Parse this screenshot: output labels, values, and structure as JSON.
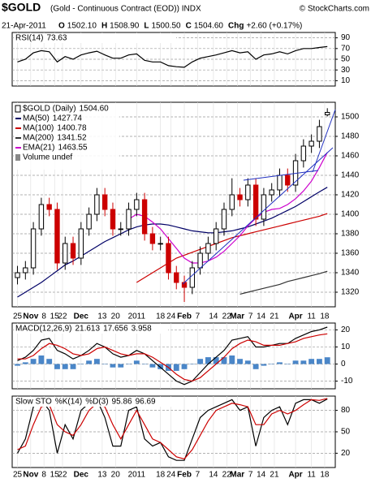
{
  "chart_data": {
    "type": "financial",
    "title": "$GOLD",
    "subtitle": "(Gold - Continuous Contract (EOD)) INDX",
    "source": "© StockCharts.com",
    "date": "21-Apr-2011",
    "quote": [
      {
        "label": "O",
        "value": "1502.10"
      },
      {
        "label": "H",
        "value": "1508.90"
      },
      {
        "label": "L",
        "value": "1500.50"
      },
      {
        "label": "C",
        "value": "1504.60"
      },
      {
        "label": "Chg",
        "value": "+2.60 (+0.17%)"
      }
    ],
    "x": [
      0,
      3,
      6,
      9,
      12,
      15,
      18,
      21,
      24,
      27,
      30,
      33,
      36,
      39,
      42,
      45,
      48,
      51,
      54,
      57,
      60,
      63,
      66,
      69,
      72,
      75,
      78,
      81,
      84,
      87,
      90,
      93,
      96,
      99,
      102,
      105,
      108,
      111,
      114,
      117
    ],
    "xlim": [
      -2,
      120
    ],
    "xticks": [
      {
        "value": 0,
        "label": "25"
      },
      {
        "value": 5,
        "label": "Nov"
      },
      {
        "value": 10,
        "label": "8"
      },
      {
        "value": 14,
        "label": "15"
      },
      {
        "value": 17,
        "label": "22"
      },
      {
        "value": 24,
        "label": "Dec"
      },
      {
        "value": 32,
        "label": "13"
      },
      {
        "value": 37,
        "label": "20"
      },
      {
        "value": 45,
        "label": "2011"
      },
      {
        "value": 54,
        "label": "18"
      },
      {
        "value": 58,
        "label": "24"
      },
      {
        "value": 63,
        "label": "Feb"
      },
      {
        "value": 68,
        "label": "7"
      },
      {
        "value": 74,
        "label": "14"
      },
      {
        "value": 79,
        "label": "22"
      },
      {
        "value": 83,
        "label": "Mar"
      },
      {
        "value": 88,
        "label": "7"
      },
      {
        "value": 92,
        "label": "14"
      },
      {
        "value": 97,
        "label": "21"
      },
      {
        "value": 105,
        "label": "Apr"
      },
      {
        "value": 111,
        "label": "11"
      },
      {
        "value": 116,
        "label": "18"
      }
    ],
    "panels": [
      {
        "type": "line",
        "ylim": [
          0,
          100
        ],
        "yticks": [
          10,
          30,
          50,
          70,
          90
        ],
        "grid": true,
        "series": [
          {
            "name": "RSI(14)",
            "color": "#000000",
            "last_label": "73.63",
            "values": [
              45,
              50,
              62,
              66,
              64,
              45,
              55,
              50,
              58,
              62,
              65,
              58,
              52,
              52,
              58,
              60,
              48,
              45,
              45,
              38,
              36,
              35,
              45,
              52,
              55,
              58,
              62,
              66,
              62,
              64,
              50,
              58,
              60,
              64,
              60,
              66,
              70,
              70,
              72,
              73.63
            ]
          }
        ]
      },
      {
        "type": "candlestick",
        "name": "$GOLD (Daily)",
        "last_label": "1504.60",
        "ylim": [
          1305,
          1515
        ],
        "yticks": [
          1320,
          1340,
          1360,
          1380,
          1400,
          1420,
          1440,
          1460,
          1480,
          1500
        ],
        "grid": true,
        "up_color": "#000000",
        "down_color": "#cc0000",
        "volume_label": "Volume undef",
        "open": [
          1335,
          1340,
          1345,
          1385,
          1410,
          1405,
          1350,
          1370,
          1355,
          1385,
          1400,
          1420,
          1405,
          1385,
          1385,
          1405,
          1415,
          1380,
          1370,
          1370,
          1340,
          1330,
          1325,
          1345,
          1360,
          1370,
          1385,
          1405,
          1420,
          1415,
          1430,
          1395,
          1420,
          1425,
          1440,
          1430,
          1455,
          1470,
          1475,
          1502.1
        ],
        "high": [
          1347,
          1352,
          1392,
          1417,
          1417,
          1412,
          1377,
          1377,
          1392,
          1407,
          1427,
          1427,
          1412,
          1392,
          1412,
          1422,
          1422,
          1387,
          1377,
          1377,
          1347,
          1337,
          1352,
          1367,
          1377,
          1392,
          1412,
          1437,
          1427,
          1437,
          1437,
          1427,
          1432,
          1447,
          1447,
          1462,
          1477,
          1482,
          1497,
          1508.9
        ],
        "low": [
          1328,
          1333,
          1338,
          1378,
          1398,
          1343,
          1343,
          1348,
          1348,
          1378,
          1393,
          1398,
          1378,
          1378,
          1378,
          1398,
          1373,
          1363,
          1363,
          1333,
          1323,
          1310,
          1318,
          1338,
          1353,
          1363,
          1378,
          1398,
          1408,
          1408,
          1388,
          1388,
          1413,
          1418,
          1423,
          1423,
          1448,
          1463,
          1468,
          1500.5
        ],
        "close": [
          1340,
          1345,
          1385,
          1410,
          1405,
          1350,
          1370,
          1355,
          1385,
          1400,
          1420,
          1405,
          1385,
          1385,
          1405,
          1415,
          1380,
          1370,
          1370,
          1340,
          1330,
          1325,
          1345,
          1360,
          1370,
          1385,
          1405,
          1420,
          1415,
          1430,
          1395,
          1420,
          1425,
          1440,
          1430,
          1455,
          1470,
          1475,
          1490,
          1504.6
        ],
        "series": [
          {
            "name": "MA(50)",
            "color": "#000066",
            "last_label": "1427.74",
            "values": [
              1315,
              1320,
              1325,
              1330,
              1336,
              1342,
              1348,
              1352,
              1357,
              1362,
              1367,
              1372,
              1376,
              1380,
              1384,
              1387,
              1389,
              1390,
              1390,
              1389,
              1387,
              1385,
              1383,
              1382,
              1381,
              1381,
              1382,
              1383,
              1385,
              1387,
              1390,
              1393,
              1396,
              1400,
              1404,
              1408,
              1413,
              1418,
              1423,
              1427.74
            ]
          },
          {
            "name": "MA(100)",
            "color": "#cc0000",
            "last_label": "1400.78",
            "values": [
              null,
              null,
              null,
              null,
              null,
              null,
              null,
              null,
              null,
              null,
              null,
              null,
              null,
              null,
              null,
              1330,
              1335,
              1340,
              1345,
              1350,
              1355,
              1358,
              1361,
              1364,
              1367,
              1370,
              1373,
              1376,
              1378,
              1380,
              1382,
              1384,
              1386,
              1388,
              1390,
              1392,
              1394,
              1396,
              1398,
              1400.78
            ]
          },
          {
            "name": "MA(200)",
            "color": "#333333",
            "last_label": "1341.52",
            "values": [
              null,
              null,
              null,
              null,
              null,
              null,
              null,
              null,
              null,
              null,
              null,
              null,
              null,
              null,
              null,
              null,
              null,
              null,
              null,
              null,
              null,
              null,
              null,
              null,
              null,
              null,
              null,
              null,
              1318,
              1320,
              1322,
              1324,
              1326,
              1328,
              1331,
              1333,
              1335,
              1337,
              1339,
              1341.52
            ]
          },
          {
            "name": "EMA(21)",
            "color": "#cc00cc",
            "last_label": "1463.55",
            "values": [
              null,
              null,
              null,
              null,
              null,
              null,
              null,
              null,
              null,
              null,
              null,
              null,
              null,
              null,
              1395,
              1400,
              1398,
              1392,
              1385,
              1375,
              1365,
              1355,
              1350,
              1350,
              1352,
              1356,
              1362,
              1370,
              1378,
              1388,
              1396,
              1402,
              1405,
              1406,
              1410,
              1416,
              1424,
              1434,
              1448,
              1463.55
            ]
          }
        ]
      },
      {
        "type": "macd",
        "ylim": [
          -14.5,
          24
        ],
        "yticks": [
          -10,
          0,
          10,
          20
        ],
        "grid": true,
        "title": "MACD(12,26,9)",
        "series": [
          {
            "name": "MACD",
            "color": "#000000",
            "last_label": "21.613",
            "values": [
              2,
              4,
              8,
              14,
              15,
              8,
              6,
              3,
              5,
              8,
              12,
              10,
              6,
              4,
              5,
              8,
              6,
              2,
              -2,
              -6,
              -10,
              -12,
              -10,
              -5,
              0,
              4,
              8,
              14,
              15,
              16,
              10,
              10,
              11,
              12,
              12,
              15,
              17,
              19,
              20,
              21.613
            ]
          },
          {
            "name": "Signal",
            "color": "#cc0000",
            "last_label": "17.656",
            "values": [
              3,
              3,
              5,
              9,
              12,
              11,
              9,
              6,
              5,
              6,
              9,
              10,
              8,
              6,
              5,
              6,
              6,
              4,
              1,
              -2,
              -6,
              -9,
              -10,
              -8,
              -4,
              0,
              4,
              9,
              12,
              14,
              13,
              11,
              11,
              11,
              12,
              13,
              15,
              16,
              17,
              17.656
            ]
          },
          {
            "name": "Histogram",
            "color": "#4a86c8",
            "last_label": "3.958",
            "bars": true,
            "values": [
              -1,
              1,
              3,
              5,
              3,
              -3,
              -3,
              -3,
              0,
              2,
              3,
              0,
              -2,
              -2,
              0,
              2,
              0,
              -2,
              -3,
              -4,
              -4,
              -3,
              0,
              3,
              4,
              4,
              4,
              5,
              3,
              2,
              -3,
              -1,
              0,
              1,
              0,
              2,
              2,
              3,
              3,
              3.958
            ]
          }
        ]
      },
      {
        "type": "line",
        "ylim": [
          0,
          100
        ],
        "yticks": [
          20,
          50,
          80
        ],
        "grid": true,
        "title": "Slow STO",
        "series": [
          {
            "name": "%K(14)",
            "color": "#000000",
            "last_label": "95.86",
            "values": [
              20,
              40,
              85,
              95,
              80,
              20,
              60,
              40,
              80,
              90,
              95,
              70,
              30,
              30,
              80,
              85,
              40,
              30,
              35,
              15,
              10,
              10,
              40,
              70,
              80,
              85,
              90,
              95,
              80,
              85,
              30,
              70,
              80,
              85,
              60,
              90,
              95,
              95,
              90,
              95.86
            ]
          },
          {
            "name": "%D(3)",
            "color": "#cc0000",
            "last_label": "96.69",
            "values": [
              25,
              30,
              60,
              85,
              88,
              60,
              50,
              45,
              60,
              80,
              90,
              85,
              60,
              40,
              60,
              80,
              60,
              40,
              35,
              25,
              15,
              12,
              25,
              45,
              65,
              80,
              85,
              90,
              88,
              85,
              60,
              60,
              75,
              80,
              75,
              80,
              88,
              95,
              94,
              96.69
            ]
          }
        ]
      }
    ]
  }
}
